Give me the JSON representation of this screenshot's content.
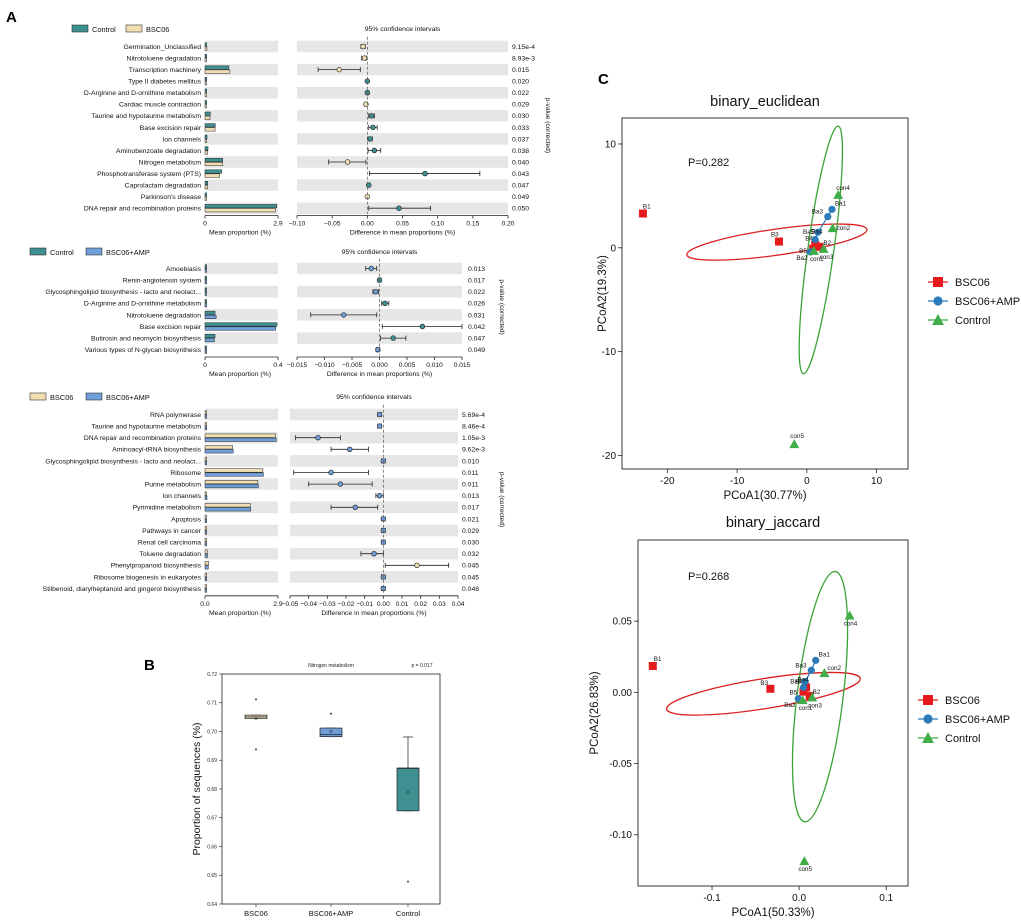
{
  "panel_labels": [
    "A",
    "B",
    "C"
  ],
  "colors": {
    "control": "#3f9090",
    "bsc06": "#f1dfb4",
    "bsc06_amp": "#6f9fd8",
    "row_band": "#e6e6e6",
    "ellipse_red": "#dd1f1f",
    "ellipse_green": "#3aa335",
    "pt_red": "#e41a1c",
    "pt_blue": "#2b7bba",
    "pt_green": "#3fae49"
  },
  "chart_data": [
    {
      "type": "bar",
      "id": "A1",
      "title": "95% confidence intervals",
      "legend": [
        "Control",
        "BSC06"
      ],
      "legend_colors": [
        "#3f9090",
        "#f1dfb4"
      ],
      "xlabel": "Mean proportion (%)",
      "x_ticks": [
        "0",
        "2.9"
      ],
      "xmax": 2.9,
      "diff_xlabel": "Difference in mean proportions (%)",
      "diff_ticks": [
        "−0.10",
        "−0.05",
        "0.00",
        "0.05",
        "0.10",
        "0.15",
        "0.20"
      ],
      "diff_tick_values": [
        -0.1,
        -0.05,
        0.0,
        0.05,
        0.1,
        0.15,
        0.2
      ],
      "diff_range": [
        -0.1,
        0.2
      ],
      "pvalue_label": "p-value (corrected)",
      "rows": [
        {
          "label": "Germination_Unclassified",
          "a": 0.02,
          "b": 0.08,
          "diff": -0.006,
          "lo": -0.009,
          "hi": -0.003,
          "dir": "b",
          "p": "9.15e-4"
        },
        {
          "label": "Nitrotoluene degradation",
          "a": 0.02,
          "b": 0.04,
          "diff": -0.004,
          "lo": -0.008,
          "hi": -0.001,
          "dir": "b",
          "p": "8.93e-3"
        },
        {
          "label": "Transcription machinery",
          "a": 0.95,
          "b": 0.99,
          "diff": -0.04,
          "lo": -0.07,
          "hi": -0.01,
          "dir": "b",
          "p": "0.015"
        },
        {
          "label": "Type II diabetes mellitus",
          "a": 0.02,
          "b": 0.01,
          "diff": 0.0,
          "lo": -0.001,
          "hi": 0.001,
          "dir": "a",
          "p": "0.020"
        },
        {
          "label": "D-Arginine and D-ornithine metabolism",
          "a": 0.02,
          "b": 0.01,
          "diff": 0.0,
          "lo": -0.001,
          "hi": 0.002,
          "dir": "a",
          "p": "0.022"
        },
        {
          "label": "Cardiac muscle contraction",
          "a": 0.01,
          "b": 0.01,
          "diff": -0.002,
          "lo": -0.003,
          "hi": -0.001,
          "dir": "b",
          "p": "0.029"
        },
        {
          "label": "Taurine and hypotaurine metabolism",
          "a": 0.21,
          "b": 0.2,
          "diff": 0.006,
          "lo": 0.002,
          "hi": 0.01,
          "dir": "a",
          "p": "0.030"
        },
        {
          "label": "Base excision repair",
          "a": 0.41,
          "b": 0.4,
          "diff": 0.008,
          "lo": 0.002,
          "hi": 0.014,
          "dir": "a",
          "p": "0.033"
        },
        {
          "label": "Ion channels",
          "a": 0.08,
          "b": 0.07,
          "diff": 0.004,
          "lo": 0.001,
          "hi": 0.007,
          "dir": "a",
          "p": "0.037"
        },
        {
          "label": "Aminobenzoate degradation",
          "a": 0.12,
          "b": 0.11,
          "diff": 0.01,
          "lo": 0.001,
          "hi": 0.019,
          "dir": "a",
          "p": "0.038"
        },
        {
          "label": "Nitrogen metabolism",
          "a": 0.7,
          "b": 0.7,
          "diff": -0.028,
          "lo": -0.055,
          "hi": -0.002,
          "dir": "b",
          "p": "0.040"
        },
        {
          "label": "Phosphotransferase system (PTS)",
          "a": 0.66,
          "b": 0.58,
          "diff": 0.082,
          "lo": 0.003,
          "hi": 0.16,
          "dir": "a",
          "p": "0.043"
        },
        {
          "label": "Caprolactam degradation",
          "a": 0.11,
          "b": 0.1,
          "diff": 0.002,
          "lo": 0.001,
          "hi": 0.004,
          "dir": "a",
          "p": "0.047"
        },
        {
          "label": "Parkinson's disease",
          "a": 0.02,
          "b": 0.02,
          "diff": 0.0,
          "lo": -0.001,
          "hi": 0.001,
          "dir": "b",
          "p": "0.049"
        },
        {
          "label": "DNA repair and recombination proteins",
          "a": 2.85,
          "b": 2.8,
          "diff": 0.045,
          "lo": 0.002,
          "hi": 0.09,
          "dir": "a",
          "p": "0.050"
        }
      ]
    },
    {
      "type": "bar",
      "id": "A2",
      "title": "95% confidence intervals",
      "legend": [
        "Control",
        "BSC06+AMP"
      ],
      "legend_colors": [
        "#3f9090",
        "#6f9fd8"
      ],
      "xlabel": "Mean proportion (%)",
      "x_ticks": [
        "0",
        "0.4"
      ],
      "xmax": 0.4,
      "diff_xlabel": "Difference in mean proportions (%)",
      "diff_ticks": [
        "−0.015",
        "−0.010",
        "−0.005",
        "0.000",
        "0.005",
        "0.010",
        "0.015"
      ],
      "diff_tick_values": [
        -0.015,
        -0.01,
        -0.005,
        0.0,
        0.005,
        0.01,
        0.015
      ],
      "diff_range": [
        -0.015,
        0.015
      ],
      "pvalue_label": "p-value (corrected)",
      "rows": [
        {
          "label": "Amoebiasis",
          "a": 0.003,
          "b": 0.004,
          "diff": -0.0015,
          "lo": -0.0025,
          "hi": -0.0005,
          "dir": "b",
          "p": "0.013"
        },
        {
          "label": "Renin-angiotensin system",
          "a": 0.002,
          "b": 0.002,
          "diff": 0.0,
          "lo": -0.0003,
          "hi": 0.0003,
          "dir": "a",
          "p": "0.017"
        },
        {
          "label": "Glycosphingolipid biosynthesis - lacto and neolact...",
          "a": 0.004,
          "b": 0.005,
          "diff": -0.0007,
          "lo": -0.0012,
          "hi": -0.0002,
          "dir": "b",
          "p": "0.022"
        },
        {
          "label": "D-Arginine and D-ornithine metabolism",
          "a": 0.005,
          "b": 0.003,
          "diff": 0.001,
          "lo": 0.0004,
          "hi": 0.0017,
          "dir": "a",
          "p": "0.026"
        },
        {
          "label": "Nitrotoluene degradation",
          "a": 0.055,
          "b": 0.061,
          "diff": -0.0065,
          "lo": -0.0125,
          "hi": -0.0005,
          "dir": "b",
          "p": "0.031"
        },
        {
          "label": "Base excision repair",
          "a": 0.395,
          "b": 0.388,
          "diff": 0.0078,
          "lo": 0.0005,
          "hi": 0.015,
          "dir": "a",
          "p": "0.042"
        },
        {
          "label": "Butirosin and neomycin biosynthesis",
          "a": 0.055,
          "b": 0.052,
          "diff": 0.0025,
          "lo": 0.0002,
          "hi": 0.0048,
          "dir": "a",
          "p": "0.047"
        },
        {
          "label": "Various types of N-glycan biosynthesis",
          "a": 0.002,
          "b": 0.003,
          "diff": -0.0003,
          "lo": -0.0006,
          "hi": 0.0,
          "dir": "b",
          "p": "0.049"
        }
      ]
    },
    {
      "type": "bar",
      "id": "A3",
      "title": "95% confidence intervals",
      "legend": [
        "BSC06",
        "BSC06+AMP"
      ],
      "legend_colors": [
        "#f1dfb4",
        "#6f9fd8"
      ],
      "xlabel": "Mean proportion (%)",
      "x_ticks": [
        "0.0",
        "2.9"
      ],
      "xmax": 2.9,
      "diff_xlabel": "Difference in mean proportions (%)",
      "diff_ticks": [
        "−0.05",
        "−0.04",
        "−0.03",
        "−0.02",
        "−0.01",
        "0.00",
        "0.01",
        "0.02",
        "0.03",
        "0.04"
      ],
      "diff_tick_values": [
        -0.05,
        -0.04,
        -0.03,
        -0.02,
        -0.01,
        0.0,
        0.01,
        0.02,
        0.03,
        0.04
      ],
      "diff_range": [
        -0.05,
        0.04
      ],
      "pvalue_label": "p-value (corrected)",
      "rows": [
        {
          "label": "RNA polymerase",
          "a": 0.05,
          "b": 0.06,
          "diff": -0.002,
          "lo": -0.003,
          "hi": -0.001,
          "dir": "b",
          "p": "5.69e-4"
        },
        {
          "label": "Taurine and hypotaurine metabolism",
          "a": 0.05,
          "b": 0.06,
          "diff": -0.002,
          "lo": -0.003,
          "hi": -0.001,
          "dir": "b",
          "p": "8.46e-4"
        },
        {
          "label": "DNA repair and recombination proteins",
          "a": 2.8,
          "b": 2.83,
          "diff": -0.035,
          "lo": -0.047,
          "hi": -0.023,
          "dir": "b",
          "p": "1.05e-3"
        },
        {
          "label": "Aminoacyl-tRNA biosynthesis",
          "a": 1.1,
          "b": 1.12,
          "diff": -0.018,
          "lo": -0.028,
          "hi": -0.008,
          "dir": "b",
          "p": "9.62e-3"
        },
        {
          "label": "Glycosphingolipid biosynthesis - lacto and neolact...",
          "a": 0.02,
          "b": 0.02,
          "diff": 0.0,
          "lo": -0.001,
          "hi": 0.001,
          "dir": "b",
          "p": "0.010"
        },
        {
          "label": "Ribosome",
          "a": 2.3,
          "b": 2.32,
          "diff": -0.028,
          "lo": -0.048,
          "hi": -0.008,
          "dir": "b",
          "p": "0.011"
        },
        {
          "label": "Purine metabolism",
          "a": 2.1,
          "b": 2.12,
          "diff": -0.023,
          "lo": -0.04,
          "hi": -0.006,
          "dir": "b",
          "p": "0.011"
        },
        {
          "label": "Ion channels",
          "a": 0.07,
          "b": 0.08,
          "diff": -0.002,
          "lo": -0.004,
          "hi": 0.0,
          "dir": "b",
          "p": "0.013"
        },
        {
          "label": "Pyrimidine metabolism",
          "a": 1.8,
          "b": 1.82,
          "diff": -0.015,
          "lo": -0.028,
          "hi": -0.003,
          "dir": "b",
          "p": "0.017"
        },
        {
          "label": "Apoptosis",
          "a": 0.01,
          "b": 0.01,
          "diff": 0.0,
          "lo": -0.001,
          "hi": 0.001,
          "dir": "b",
          "p": "0.021"
        },
        {
          "label": "Pathways in cancer",
          "a": 0.01,
          "b": 0.01,
          "diff": 0.0,
          "lo": -0.001,
          "hi": 0.001,
          "dir": "b",
          "p": "0.029"
        },
        {
          "label": "Renal cell carcinoma",
          "a": 0.01,
          "b": 0.01,
          "diff": 0.0,
          "lo": -0.001,
          "hi": 0.001,
          "dir": "b",
          "p": "0.030"
        },
        {
          "label": "Toluene degradation",
          "a": 0.09,
          "b": 0.1,
          "diff": -0.005,
          "lo": -0.012,
          "hi": 0.0,
          "dir": "b",
          "p": "0.032"
        },
        {
          "label": "Phenylpropanoid biosynthesis",
          "a": 0.15,
          "b": 0.13,
          "diff": 0.018,
          "lo": 0.001,
          "hi": 0.035,
          "dir": "a",
          "p": "0.045"
        },
        {
          "label": "Ribosome biogenesis in eukaryotes",
          "a": 0.02,
          "b": 0.02,
          "diff": 0.0,
          "lo": -0.001,
          "hi": 0.001,
          "dir": "b",
          "p": "0.045"
        },
        {
          "label": "Stilbenoid, diarylheptanoid and gingerol biosynthesis",
          "a": 0.01,
          "b": 0.01,
          "diff": 0.0,
          "lo": -0.001,
          "hi": 0.001,
          "dir": "b",
          "p": "0.048"
        }
      ]
    },
    {
      "type": "box",
      "id": "B",
      "title": "Nitrogen metabolism",
      "pvalue": "p = 0.017",
      "ylabel": "Proportion of sequences  (%)",
      "ylim": [
        0.64,
        0.72
      ],
      "y_ticks": [
        0.64,
        0.65,
        0.66,
        0.67,
        0.68,
        0.69,
        0.7,
        0.71,
        0.72
      ],
      "y_tick_labels": [
        "0.64",
        "0.65",
        "0.66",
        "0.67",
        "0.68",
        "0.69",
        "0.70",
        "0.71",
        "0.72"
      ],
      "categories": [
        "BSC06",
        "BSC06+AMP",
        "Control"
      ],
      "box_colors": [
        "#f1dfb4",
        "#6f9fd8",
        "#3f9090"
      ],
      "boxes": [
        {
          "q1": 0.7045,
          "median": 0.7051,
          "q3": 0.7057,
          "wlo": 0.7045,
          "whi": 0.7057,
          "mean": 0.7046,
          "outliers": [
            0.7112,
            0.6938
          ]
        },
        {
          "q1": 0.6982,
          "median": 0.699,
          "q3": 0.7012,
          "wlo": 0.6982,
          "whi": 0.7012,
          "mean": 0.7,
          "outliers": [
            0.7062
          ]
        },
        {
          "q1": 0.6724,
          "median": 0.6872,
          "q3": 0.6873,
          "wlo": 0.6724,
          "whi": 0.6981,
          "mean": 0.6787,
          "outliers": [
            0.6478
          ]
        }
      ]
    },
    {
      "type": "scatter",
      "id": "C1",
      "title": "binary_euclidean",
      "stat": "P=0.282",
      "xlabel": "PCoA1(30.77%)",
      "ylabel": "PCoA2(19.3%)",
      "xlim": [
        -26.5,
        14.5
      ],
      "ylim": [
        -21.3,
        12.5
      ],
      "x_ticks": [
        -20,
        -10,
        0,
        10
      ],
      "x_tick_labels": [
        "-20",
        "-10",
        "0",
        "10"
      ],
      "y_ticks": [
        -20,
        -10,
        0,
        10
      ],
      "y_tick_labels": [
        "-20",
        "-10",
        "0",
        "10"
      ],
      "legend": [
        "BSC06",
        "BSC06+AMP",
        "Control"
      ],
      "groups": [
        {
          "name": "BSC06",
          "marker": "square",
          "points": [
            {
              "label": "B1",
              "x": -23.5,
              "y": 3.3
            },
            {
              "label": "B3",
              "x": -4.0,
              "y": 0.6
            },
            {
              "label": "B2",
              "x": 1.8,
              "y": 0.1
            },
            {
              "label": "B4",
              "x": 1.2,
              "y": 0.3
            },
            {
              "label": "B5",
              "x": 0.9,
              "y": -0.1
            }
          ]
        },
        {
          "name": "BSC06+AMP",
          "marker": "circle",
          "points": [
            {
              "label": "Ba1",
              "x": 3.6,
              "y": 3.7
            },
            {
              "label": "Ba3",
              "x": 3.0,
              "y": 3.0
            },
            {
              "label": "Ba5",
              "x": 1.6,
              "y": 1.5
            },
            {
              "label": "Ba4",
              "x": 1.2,
              "y": 0.8
            },
            {
              "label": "Ba2",
              "x": 0.5,
              "y": -0.4
            }
          ]
        },
        {
          "name": "Control",
          "marker": "triangle",
          "points": [
            {
              "label": "con4",
              "x": 4.5,
              "y": 5.1
            },
            {
              "label": "con2",
              "x": 3.7,
              "y": 1.9
            },
            {
              "label": "con3",
              "x": 2.4,
              "y": -0.1
            },
            {
              "label": "con1",
              "x": 1.0,
              "y": -0.3
            },
            {
              "label": "con5",
              "x": -1.8,
              "y": -18.9
            }
          ]
        }
      ]
    },
    {
      "type": "scatter",
      "id": "C2",
      "title": "binary_jaccard",
      "stat": "P=0.268",
      "xlabel": "PCoA1(50.33%)",
      "ylabel": "PCoA2(26.83%)",
      "xlim": [
        -0.185,
        0.125
      ],
      "ylim": [
        -0.136,
        0.107
      ],
      "x_ticks": [
        -0.1,
        0.0,
        0.1
      ],
      "x_tick_labels": [
        "-0.1",
        "0.0",
        "0.1"
      ],
      "y_ticks": [
        -0.1,
        -0.05,
        0.0,
        0.05
      ],
      "y_tick_labels": [
        "-0.10",
        "-0.05",
        "0.00",
        "0.05"
      ],
      "legend": [
        "BSC06",
        "BSC06+AMP",
        "Control"
      ],
      "groups": [
        {
          "name": "BSC06",
          "marker": "square",
          "points": [
            {
              "label": "B1",
              "x": -0.168,
              "y": 0.0185
            },
            {
              "label": "B3",
              "x": -0.033,
              "y": 0.0025
            },
            {
              "label": "B2",
              "x": 0.012,
              "y": -0.0025
            },
            {
              "label": "B4",
              "x": 0.008,
              "y": 0.0035
            },
            {
              "label": "B5",
              "x": 0.005,
              "y": 0.0005
            }
          ]
        },
        {
          "name": "BSC06+AMP",
          "marker": "circle",
          "points": [
            {
              "label": "Ba1",
              "x": 0.019,
              "y": 0.0225
            },
            {
              "label": "Ba3",
              "x": 0.014,
              "y": 0.0155
            },
            {
              "label": "Ba5",
              "x": 0.007,
              "y": 0.0075
            },
            {
              "label": "Ba4",
              "x": 0.005,
              "y": 0.0035
            },
            {
              "label": "Ba2",
              "x": -0.001,
              "y": -0.0045
            }
          ]
        },
        {
          "name": "Control",
          "marker": "triangle",
          "points": [
            {
              "label": "con4",
              "x": 0.058,
              "y": 0.054
            },
            {
              "label": "con2",
              "x": 0.029,
              "y": 0.0135
            },
            {
              "label": "con3",
              "x": 0.015,
              "y": -0.0035
            },
            {
              "label": "con1",
              "x": 0.004,
              "y": -0.0055
            },
            {
              "label": "con5",
              "x": 0.006,
              "y": -0.1185
            }
          ]
        }
      ]
    }
  ]
}
